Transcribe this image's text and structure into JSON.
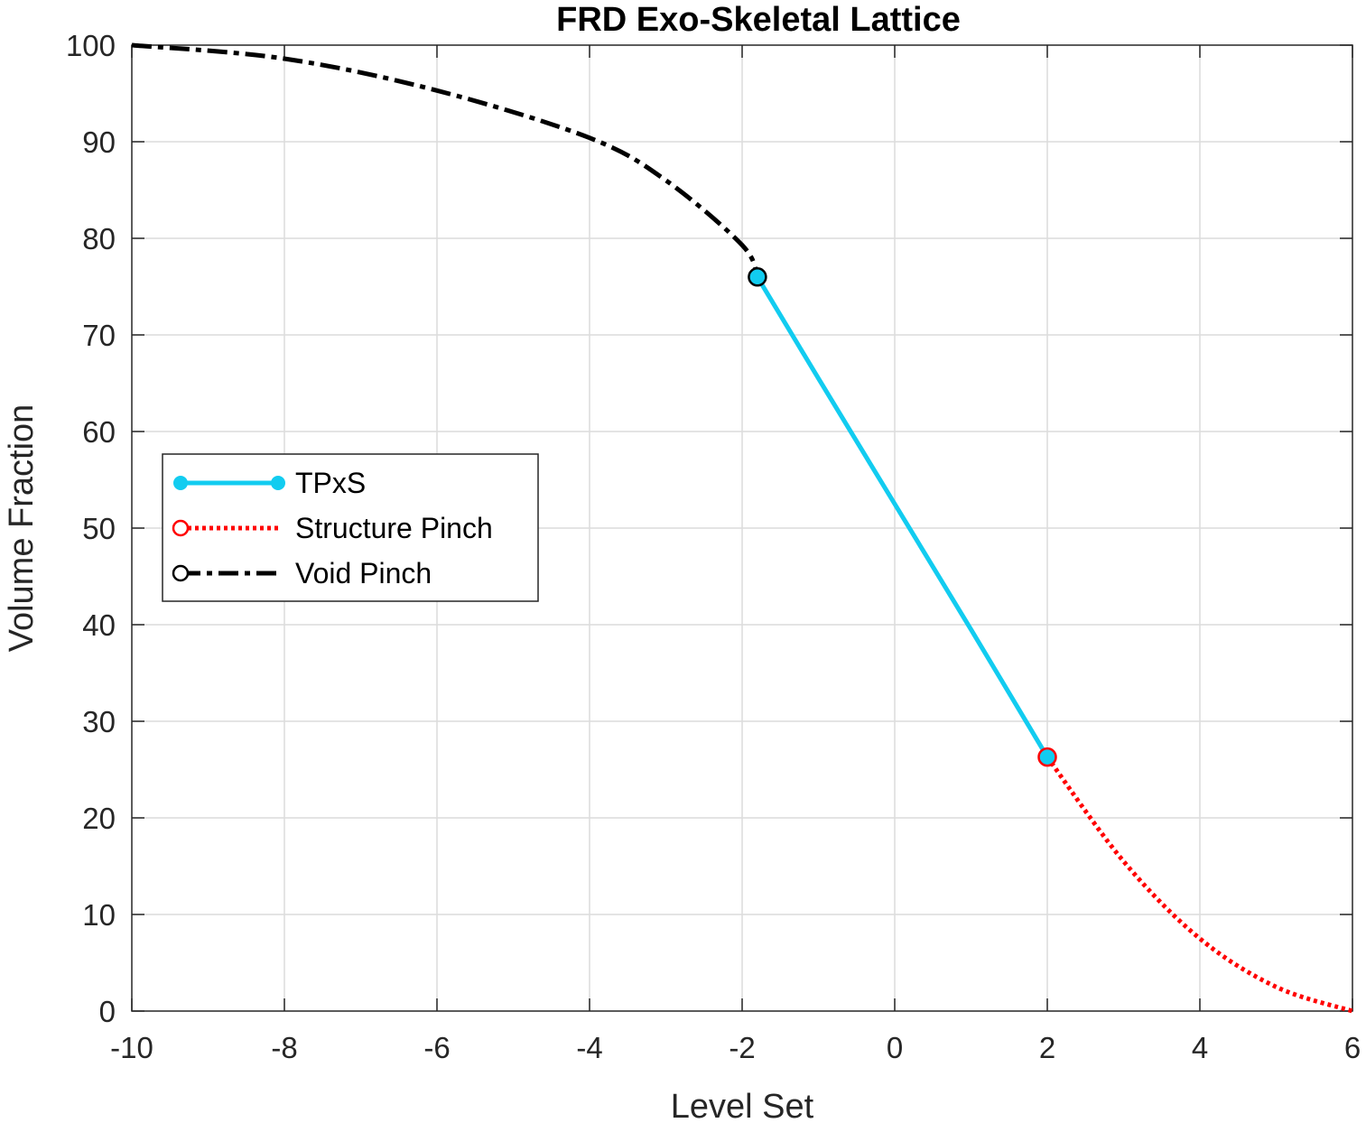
{
  "chart_data": {
    "type": "line",
    "title": "FRD Exo-Skeletal Lattice",
    "xlabel": "Level Set",
    "ylabel": "Volume Fraction",
    "xlim": [
      -10,
      6
    ],
    "ylim": [
      0,
      100
    ],
    "xticks": [
      -10,
      -8,
      -6,
      -4,
      -2,
      0,
      2,
      4,
      6
    ],
    "yticks": [
      0,
      10,
      20,
      30,
      40,
      50,
      60,
      70,
      80,
      90,
      100
    ],
    "xtick_labels": [
      "-10",
      "-8",
      "-6",
      "-4",
      "-2",
      "0",
      "2",
      "4",
      "6"
    ],
    "ytick_labels": [
      "0",
      "10",
      "20",
      "30",
      "40",
      "50",
      "60",
      "70",
      "80",
      "90",
      "100"
    ],
    "grid": true,
    "legend_position": "middle-left",
    "series": [
      {
        "name": "TPxS",
        "color": "#12CCF0",
        "style": "solid",
        "marker": "filled-circle",
        "x": [
          -1.8,
          -1.0,
          0.0,
          1.0,
          2.0
        ],
        "y": [
          76.0,
          65.5,
          52.5,
          39.5,
          26.3
        ]
      },
      {
        "name": "Structure Pinch",
        "color": "#FF0000",
        "style": "dotted",
        "marker": "open-circle",
        "x": [
          2.0,
          3.0,
          4.0,
          5.0,
          6.0
        ],
        "y": [
          26.3,
          15.5,
          7.5,
          2.5,
          0.0
        ]
      },
      {
        "name": "Void Pinch",
        "color": "#000000",
        "style": "dash-dot",
        "marker": "open-circle",
        "x": [
          -10.0,
          -8.0,
          -6.0,
          -4.0,
          -3.0,
          -2.0,
          -1.8
        ],
        "y": [
          100.0,
          98.6,
          95.3,
          90.4,
          86.0,
          79.3,
          76.0
        ]
      }
    ],
    "markers": [
      {
        "x": -1.8,
        "y": 76.0,
        "fill": "#12CCF0",
        "stroke": "#000000"
      },
      {
        "x": 2.0,
        "y": 26.3,
        "fill": "#12CCF0",
        "stroke": "#FF0000"
      }
    ]
  }
}
